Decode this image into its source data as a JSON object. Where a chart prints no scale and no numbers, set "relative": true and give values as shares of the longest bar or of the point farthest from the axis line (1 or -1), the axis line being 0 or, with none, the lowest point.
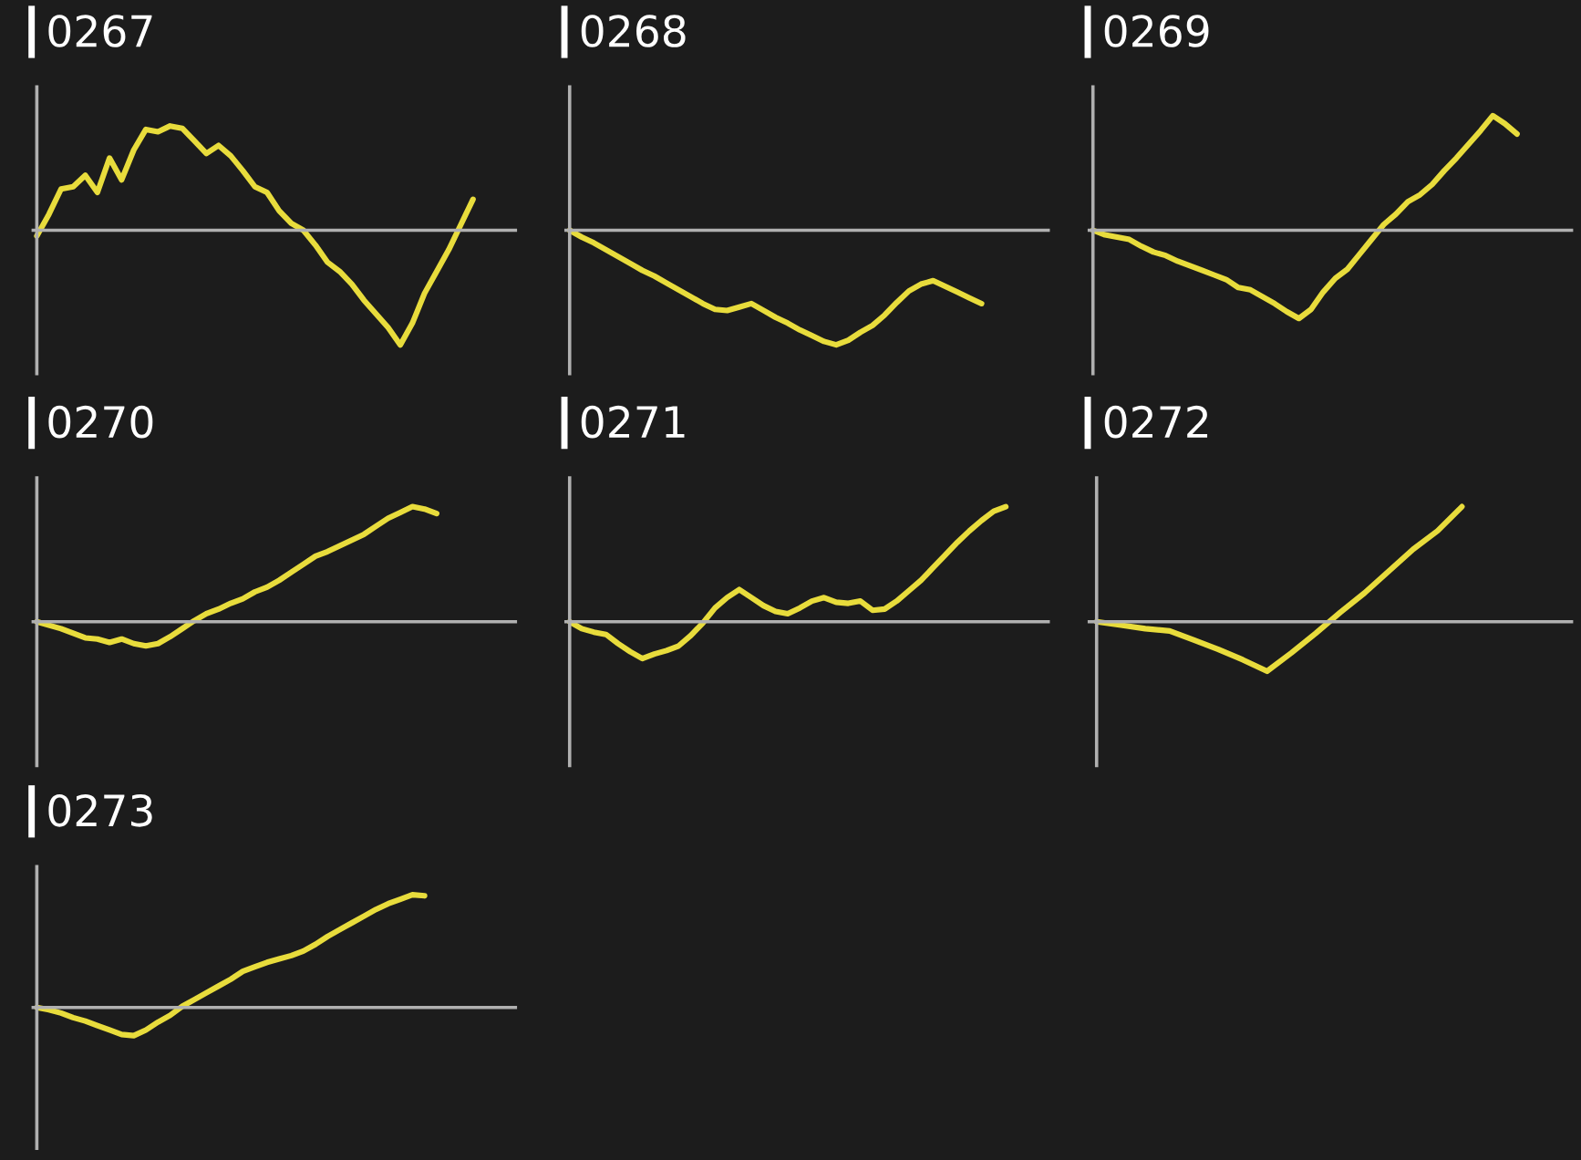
{
  "chart_data": [
    {
      "type": "line",
      "title": "0267",
      "relative": true,
      "categories": [
        null,
        null,
        null,
        null,
        null,
        null,
        null,
        null,
        null,
        null,
        null,
        null,
        null,
        null,
        null,
        null,
        null,
        null,
        null,
        null,
        null,
        null,
        null,
        null,
        null,
        null,
        null,
        null,
        null,
        null,
        null,
        null,
        null,
        null,
        null,
        null,
        null,
        null,
        null,
        null
      ],
      "series": [
        {
          "color": "#e8dc3c",
          "values": [
            -0.05,
            0.14,
            0.36,
            0.38,
            0.48,
            0.33,
            0.63,
            0.44,
            0.7,
            0.88,
            0.86,
            0.91,
            0.89,
            0.78,
            0.67,
            0.74,
            0.65,
            0.52,
            0.38,
            0.33,
            0.17,
            0.06,
            0,
            -0.13,
            -0.28,
            -0.36,
            -0.47,
            -0.61,
            -0.73,
            -0.85,
            -1,
            -0.81,
            -0.55,
            -0.36,
            -0.17,
            0.05,
            0.27,
            null,
            null,
            null
          ]
        }
      ]
    },
    {
      "type": "line",
      "title": "0268",
      "relative": true,
      "categories": [
        null,
        null,
        null,
        null,
        null,
        null,
        null,
        null,
        null,
        null,
        null,
        null,
        null,
        null,
        null,
        null,
        null,
        null,
        null,
        null,
        null,
        null,
        null,
        null,
        null,
        null,
        null,
        null,
        null,
        null,
        null,
        null,
        null,
        null,
        null,
        null,
        null,
        null,
        null,
        null
      ],
      "series": [
        {
          "color": "#e8dc3c",
          "values": [
            0,
            -0.06,
            -0.11,
            -0.17,
            -0.23,
            -0.29,
            -0.35,
            -0.4,
            -0.46,
            -0.52,
            -0.58,
            -0.64,
            -0.69,
            -0.7,
            -0.67,
            -0.64,
            -0.7,
            -0.76,
            -0.81,
            -0.87,
            -0.92,
            -0.97,
            -1,
            -0.96,
            -0.89,
            -0.83,
            -0.74,
            -0.63,
            -0.53,
            -0.47,
            -0.44,
            -0.49,
            -0.54,
            -0.59,
            -0.64,
            null,
            null,
            null,
            null,
            null
          ]
        }
      ]
    },
    {
      "type": "line",
      "title": "0269",
      "relative": true,
      "categories": [
        null,
        null,
        null,
        null,
        null,
        null,
        null,
        null,
        null,
        null,
        null,
        null,
        null,
        null,
        null,
        null,
        null,
        null,
        null,
        null,
        null,
        null,
        null,
        null,
        null,
        null,
        null,
        null,
        null,
        null,
        null,
        null,
        null,
        null,
        null,
        null,
        null,
        null,
        null,
        null
      ],
      "series": [
        {
          "color": "#e8dc3c",
          "values": [
            0,
            -0.04,
            -0.06,
            -0.08,
            -0.14,
            -0.19,
            -0.22,
            -0.27,
            -0.31,
            -0.35,
            -0.39,
            -0.43,
            -0.5,
            -0.52,
            -0.58,
            -0.64,
            -0.71,
            -0.77,
            -0.69,
            -0.54,
            -0.42,
            -0.34,
            -0.21,
            -0.08,
            0.05,
            0.14,
            0.25,
            0.31,
            0.4,
            0.52,
            0.63,
            0.75,
            0.87,
            1,
            0.93,
            0.84,
            null,
            null,
            null,
            null
          ]
        }
      ]
    },
    {
      "type": "line",
      "title": "0270",
      "relative": true,
      "categories": [
        null,
        null,
        null,
        null,
        null,
        null,
        null,
        null,
        null,
        null,
        null,
        null,
        null,
        null,
        null,
        null,
        null,
        null,
        null,
        null,
        null,
        null,
        null,
        null,
        null,
        null,
        null,
        null,
        null,
        null,
        null,
        null,
        null,
        null,
        null,
        null,
        null,
        null,
        null,
        null
      ],
      "series": [
        {
          "color": "#e8dc3c",
          "values": [
            0,
            -0.03,
            -0.06,
            -0.1,
            -0.14,
            -0.15,
            -0.18,
            -0.15,
            -0.19,
            -0.21,
            -0.19,
            -0.13,
            -0.06,
            0.01,
            0.07,
            0.11,
            0.16,
            0.2,
            0.26,
            0.3,
            0.36,
            0.43,
            0.5,
            0.57,
            0.61,
            0.66,
            0.71,
            0.76,
            0.83,
            0.9,
            0.95,
            1,
            0.98,
            0.94,
            null,
            null,
            null,
            null,
            null,
            null
          ]
        }
      ]
    },
    {
      "type": "line",
      "title": "0271",
      "relative": true,
      "categories": [
        null,
        null,
        null,
        null,
        null,
        null,
        null,
        null,
        null,
        null,
        null,
        null,
        null,
        null,
        null,
        null,
        null,
        null,
        null,
        null,
        null,
        null,
        null,
        null,
        null,
        null,
        null,
        null,
        null,
        null,
        null,
        null,
        null,
        null,
        null,
        null,
        null,
        null,
        null,
        null
      ],
      "series": [
        {
          "color": "#e8dc3c",
          "values": [
            0,
            -0.06,
            -0.09,
            -0.11,
            -0.19,
            -0.26,
            -0.32,
            -0.28,
            -0.25,
            -0.21,
            -0.12,
            -0.01,
            0.12,
            0.21,
            0.28,
            0.21,
            0.14,
            0.09,
            0.07,
            0.12,
            0.18,
            0.21,
            0.17,
            0.16,
            0.18,
            0.1,
            0.11,
            0.18,
            0.27,
            0.36,
            0.47,
            0.58,
            0.69,
            0.79,
            0.88,
            0.96,
            1,
            null,
            null,
            null
          ]
        }
      ]
    },
    {
      "type": "line",
      "title": "0272",
      "relative": true,
      "categories": [
        null,
        null,
        null,
        null,
        null,
        null,
        null,
        null,
        null,
        null,
        null,
        null,
        null,
        null,
        null,
        null,
        null,
        null,
        null,
        null
      ],
      "series": [
        {
          "color": "#e8dc3c",
          "values": [
            0,
            -0.03,
            -0.06,
            -0.08,
            -0.16,
            -0.24,
            -0.33,
            -0.43,
            -0.27,
            -0.1,
            0.08,
            0.25,
            0.44,
            0.63,
            0.79,
            1,
            null,
            null,
            null,
            null
          ]
        }
      ]
    },
    {
      "type": "line",
      "title": "0273",
      "relative": true,
      "categories": [
        null,
        null,
        null,
        null,
        null,
        null,
        null,
        null,
        null,
        null,
        null,
        null,
        null,
        null,
        null,
        null,
        null,
        null,
        null,
        null,
        null,
        null,
        null,
        null,
        null,
        null,
        null,
        null,
        null,
        null,
        null,
        null,
        null,
        null,
        null,
        null,
        null,
        null,
        null,
        null
      ],
      "series": [
        {
          "color": "#e8dc3c",
          "values": [
            0,
            -0.02,
            -0.05,
            -0.09,
            -0.12,
            -0.16,
            -0.2,
            -0.24,
            -0.25,
            -0.2,
            -0.13,
            -0.07,
            0.01,
            0.07,
            0.13,
            0.19,
            0.25,
            0.32,
            0.36,
            0.4,
            0.43,
            0.46,
            0.5,
            0.56,
            0.63,
            0.69,
            0.75,
            0.81,
            0.87,
            0.92,
            0.96,
            1,
            0.99,
            null,
            null,
            null,
            null,
            null,
            null,
            null
          ]
        }
      ]
    }
  ]
}
